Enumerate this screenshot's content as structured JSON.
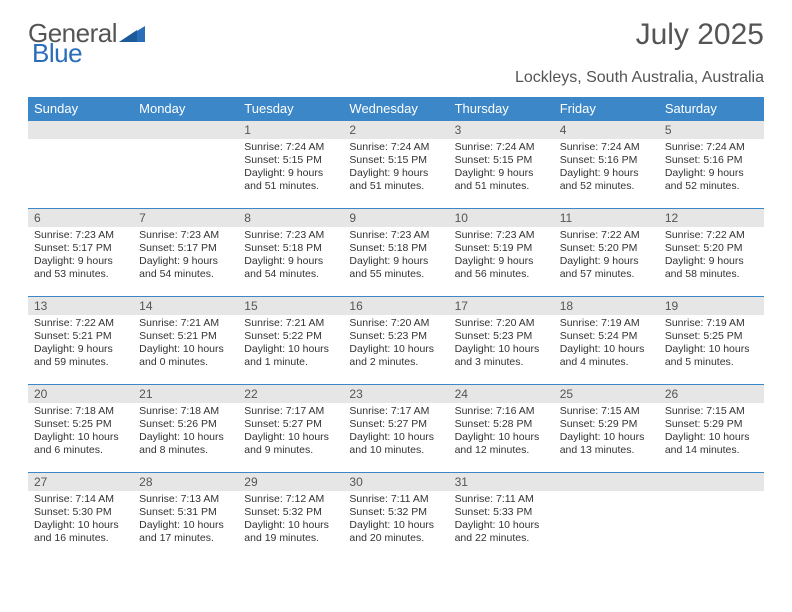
{
  "brand": {
    "word1": "General",
    "word2": "Blue"
  },
  "title": "July 2025",
  "location": "Lockleys, South Australia, Australia",
  "colors": {
    "header_bg": "#3b87c8",
    "header_text": "#ffffff",
    "daynum_bg": "#e6e6e6",
    "border": "#3b87c8",
    "text": "#333333",
    "title_text": "#555555",
    "logo_accent": "#2a6db8"
  },
  "day_headers": [
    "Sunday",
    "Monday",
    "Tuesday",
    "Wednesday",
    "Thursday",
    "Friday",
    "Saturday"
  ],
  "weeks": [
    [
      null,
      null,
      {
        "n": "1",
        "sr": "7:24 AM",
        "ss": "5:15 PM",
        "dh": "9",
        "dm": "51 minutes"
      },
      {
        "n": "2",
        "sr": "7:24 AM",
        "ss": "5:15 PM",
        "dh": "9",
        "dm": "51 minutes"
      },
      {
        "n": "3",
        "sr": "7:24 AM",
        "ss": "5:15 PM",
        "dh": "9",
        "dm": "51 minutes"
      },
      {
        "n": "4",
        "sr": "7:24 AM",
        "ss": "5:16 PM",
        "dh": "9",
        "dm": "52 minutes"
      },
      {
        "n": "5",
        "sr": "7:24 AM",
        "ss": "5:16 PM",
        "dh": "9",
        "dm": "52 minutes"
      }
    ],
    [
      {
        "n": "6",
        "sr": "7:23 AM",
        "ss": "5:17 PM",
        "dh": "9",
        "dm": "53 minutes"
      },
      {
        "n": "7",
        "sr": "7:23 AM",
        "ss": "5:17 PM",
        "dh": "9",
        "dm": "54 minutes"
      },
      {
        "n": "8",
        "sr": "7:23 AM",
        "ss": "5:18 PM",
        "dh": "9",
        "dm": "54 minutes"
      },
      {
        "n": "9",
        "sr": "7:23 AM",
        "ss": "5:18 PM",
        "dh": "9",
        "dm": "55 minutes"
      },
      {
        "n": "10",
        "sr": "7:23 AM",
        "ss": "5:19 PM",
        "dh": "9",
        "dm": "56 minutes"
      },
      {
        "n": "11",
        "sr": "7:22 AM",
        "ss": "5:20 PM",
        "dh": "9",
        "dm": "57 minutes"
      },
      {
        "n": "12",
        "sr": "7:22 AM",
        "ss": "5:20 PM",
        "dh": "9",
        "dm": "58 minutes"
      }
    ],
    [
      {
        "n": "13",
        "sr": "7:22 AM",
        "ss": "5:21 PM",
        "dh": "9",
        "dm": "59 minutes"
      },
      {
        "n": "14",
        "sr": "7:21 AM",
        "ss": "5:21 PM",
        "dh": "10",
        "dm": "0 minutes"
      },
      {
        "n": "15",
        "sr": "7:21 AM",
        "ss": "5:22 PM",
        "dh": "10",
        "dm": "1 minute"
      },
      {
        "n": "16",
        "sr": "7:20 AM",
        "ss": "5:23 PM",
        "dh": "10",
        "dm": "2 minutes"
      },
      {
        "n": "17",
        "sr": "7:20 AM",
        "ss": "5:23 PM",
        "dh": "10",
        "dm": "3 minutes"
      },
      {
        "n": "18",
        "sr": "7:19 AM",
        "ss": "5:24 PM",
        "dh": "10",
        "dm": "4 minutes"
      },
      {
        "n": "19",
        "sr": "7:19 AM",
        "ss": "5:25 PM",
        "dh": "10",
        "dm": "5 minutes"
      }
    ],
    [
      {
        "n": "20",
        "sr": "7:18 AM",
        "ss": "5:25 PM",
        "dh": "10",
        "dm": "6 minutes"
      },
      {
        "n": "21",
        "sr": "7:18 AM",
        "ss": "5:26 PM",
        "dh": "10",
        "dm": "8 minutes"
      },
      {
        "n": "22",
        "sr": "7:17 AM",
        "ss": "5:27 PM",
        "dh": "10",
        "dm": "9 minutes"
      },
      {
        "n": "23",
        "sr": "7:17 AM",
        "ss": "5:27 PM",
        "dh": "10",
        "dm": "10 minutes"
      },
      {
        "n": "24",
        "sr": "7:16 AM",
        "ss": "5:28 PM",
        "dh": "10",
        "dm": "12 minutes"
      },
      {
        "n": "25",
        "sr": "7:15 AM",
        "ss": "5:29 PM",
        "dh": "10",
        "dm": "13 minutes"
      },
      {
        "n": "26",
        "sr": "7:15 AM",
        "ss": "5:29 PM",
        "dh": "10",
        "dm": "14 minutes"
      }
    ],
    [
      {
        "n": "27",
        "sr": "7:14 AM",
        "ss": "5:30 PM",
        "dh": "10",
        "dm": "16 minutes"
      },
      {
        "n": "28",
        "sr": "7:13 AM",
        "ss": "5:31 PM",
        "dh": "10",
        "dm": "17 minutes"
      },
      {
        "n": "29",
        "sr": "7:12 AM",
        "ss": "5:32 PM",
        "dh": "10",
        "dm": "19 minutes"
      },
      {
        "n": "30",
        "sr": "7:11 AM",
        "ss": "5:32 PM",
        "dh": "10",
        "dm": "20 minutes"
      },
      {
        "n": "31",
        "sr": "7:11 AM",
        "ss": "5:33 PM",
        "dh": "10",
        "dm": "22 minutes"
      },
      null,
      null
    ]
  ],
  "labels": {
    "sunrise_prefix": "Sunrise: ",
    "sunset_prefix": "Sunset: ",
    "daylight_prefix": "Daylight: ",
    "hours_word": " hours",
    "and_word": "and "
  }
}
